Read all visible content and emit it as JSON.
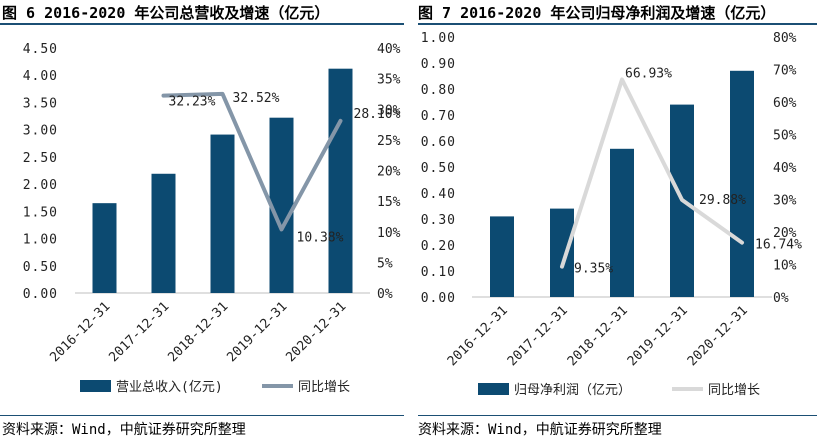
{
  "left": {
    "title": "图 6 2016-2020 年公司总营收及增速（亿元）",
    "source": "资料来源：Wind，中航证券研究所整理",
    "chart_data": {
      "type": "bar",
      "categories": [
        "2016-12-31",
        "2017-12-31",
        "2018-12-31",
        "2019-12-31",
        "2020-12-31"
      ],
      "series": [
        {
          "name": "营业总收入(亿元)",
          "kind": "bar",
          "axis": "left",
          "color": "#0c4a71",
          "values": [
            1.65,
            2.19,
            2.91,
            3.22,
            4.12
          ]
        },
        {
          "name": "同比增长",
          "kind": "line",
          "axis": "right",
          "color": "#8496a8",
          "values": [
            null,
            32.23,
            32.52,
            10.38,
            28.1
          ]
        }
      ],
      "data_labels": [
        null,
        "32.23%",
        "32.52%",
        "10.38%",
        "28.10%"
      ],
      "ylim": [
        0,
        4.5
      ],
      "y_ticks": [
        "0.00",
        "0.50",
        "1.00",
        "1.50",
        "2.00",
        "2.50",
        "3.00",
        "3.50",
        "4.00",
        "4.50"
      ],
      "y2lim": [
        0,
        40
      ],
      "y2_ticks": [
        "0%",
        "5%",
        "10%",
        "15%",
        "20%",
        "25%",
        "30%",
        "35%",
        "40%"
      ],
      "grid": false
    }
  },
  "right": {
    "title": "图 7 2016-2020 年公司归母净利润及增速（亿元）",
    "source": "资料来源：Wind，中航证券研究所整理",
    "chart_data": {
      "type": "bar",
      "categories": [
        "2016-12-31",
        "2017-12-31",
        "2018-12-31",
        "2019-12-31",
        "2020-12-31"
      ],
      "series": [
        {
          "name": "归母净利润（亿元）",
          "kind": "bar",
          "axis": "left",
          "color": "#0c4a71",
          "values": [
            0.31,
            0.34,
            0.57,
            0.74,
            0.87
          ]
        },
        {
          "name": "同比增长",
          "kind": "line",
          "axis": "right",
          "color": "#d9d9d9",
          "values": [
            null,
            9.35,
            66.93,
            29.88,
            16.74
          ]
        }
      ],
      "data_labels": [
        null,
        "9.35%",
        "66.93%",
        "29.88%",
        "16.74%"
      ],
      "ylim": [
        0,
        1.0
      ],
      "y_ticks": [
        "0.00",
        "0.10",
        "0.20",
        "0.30",
        "0.40",
        "0.50",
        "0.60",
        "0.70",
        "0.80",
        "0.90",
        "1.00"
      ],
      "y2lim": [
        0,
        80
      ],
      "y2_ticks": [
        "0%",
        "10%",
        "20%",
        "30%",
        "40%",
        "50%",
        "60%",
        "70%",
        "80%"
      ],
      "grid": false
    }
  }
}
